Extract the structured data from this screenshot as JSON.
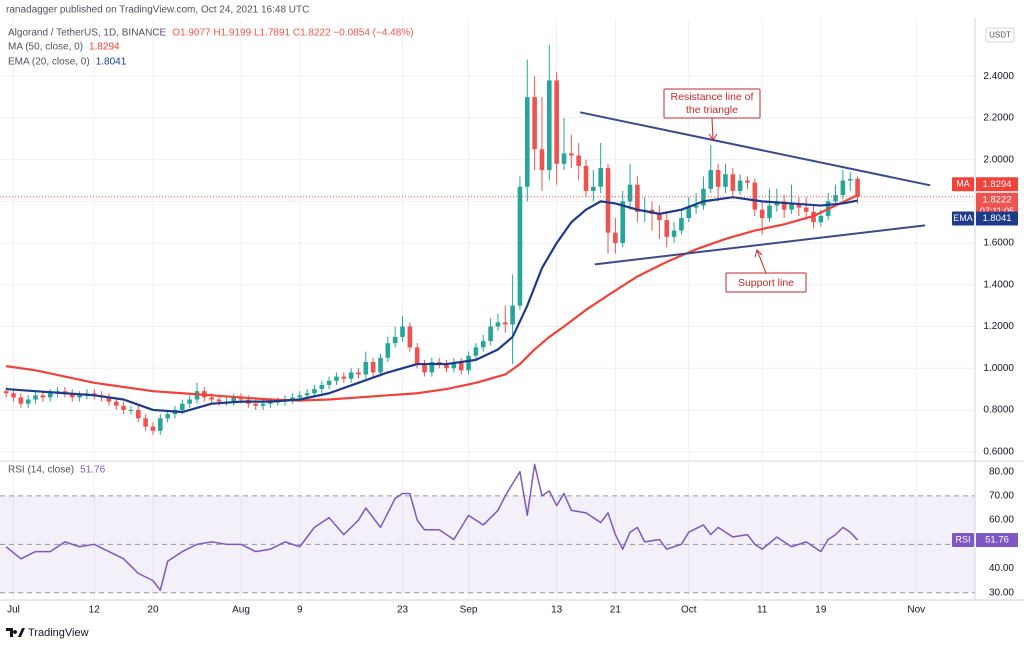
{
  "header": "ranadagger published on TradingView.com, Oct 24, 2021 16:48 UTC",
  "footer": "TradingView",
  "chart_data": [
    {
      "type": "candlestick",
      "title": "Algorand / TetherUS, 1D, BINANCE",
      "ohlc_label": "O1.9077 H1.9199 L1.7891 C1.8222 −0.0854 (−4.48%)",
      "currency": "USDT",
      "countdown": "07:11:05",
      "up_color": "#26a69a",
      "down_color": "#ef5350",
      "x": [
        -1,
        0,
        1,
        2,
        3,
        4,
        5,
        6,
        7,
        8,
        9,
        10,
        11,
        12,
        13,
        14,
        15,
        16,
        17,
        18,
        19,
        20,
        21,
        22,
        23,
        24,
        25,
        26,
        27,
        28,
        29,
        30,
        31,
        32,
        33,
        34,
        35,
        36,
        37,
        38,
        39,
        40,
        41,
        42,
        43,
        44,
        45,
        46,
        47,
        48,
        49,
        50,
        51,
        52,
        53,
        54,
        55,
        56,
        57,
        58,
        59,
        60,
        61,
        62,
        63,
        64,
        65,
        66,
        67,
        68,
        69,
        70,
        71,
        72,
        73,
        74,
        75,
        76,
        77,
        78,
        79,
        80,
        81,
        82,
        83,
        84,
        85,
        86,
        87,
        88,
        89,
        90,
        91,
        92,
        93,
        94,
        95,
        96,
        97,
        98,
        99,
        100,
        101,
        102,
        103,
        104,
        105,
        106,
        107,
        108,
        109,
        110,
        111,
        112,
        113,
        114,
        115
      ],
      "open": [
        0.89,
        0.88,
        0.86,
        0.83,
        0.85,
        0.87,
        0.86,
        0.88,
        0.89,
        0.88,
        0.86,
        0.87,
        0.88,
        0.87,
        0.86,
        0.84,
        0.82,
        0.8,
        0.8,
        0.76,
        0.72,
        0.7,
        0.76,
        0.78,
        0.8,
        0.83,
        0.85,
        0.89,
        0.86,
        0.85,
        0.84,
        0.84,
        0.86,
        0.85,
        0.83,
        0.82,
        0.83,
        0.84,
        0.84,
        0.85,
        0.86,
        0.87,
        0.88,
        0.9,
        0.92,
        0.94,
        0.96,
        0.95,
        0.98,
        0.97,
        1.03,
        0.98,
        1.05,
        1.12,
        1.15,
        1.2,
        1.1,
        1.02,
        0.98,
        1.03,
        1.02,
        1.0,
        1.03,
        0.99,
        1.06,
        1.1,
        1.13,
        1.2,
        1.22,
        1.21,
        1.3,
        1.87,
        2.3,
        2.05,
        1.95,
        2.38,
        1.98,
        2.03,
        2.02,
        1.97,
        1.85,
        1.87,
        1.96,
        1.65,
        1.6,
        1.8,
        1.88,
        1.75,
        1.76,
        1.74,
        1.71,
        1.63,
        1.66,
        1.72,
        1.77,
        1.78,
        1.86,
        1.95,
        1.87,
        1.93,
        1.85,
        1.9,
        1.89,
        1.76,
        1.72,
        1.78,
        1.8,
        1.76,
        1.79,
        1.77,
        1.75,
        1.7,
        1.73,
        1.8,
        1.83,
        1.9,
        1.9077
      ],
      "high": [
        0.91,
        0.9,
        0.88,
        0.87,
        0.89,
        0.89,
        0.9,
        0.91,
        0.91,
        0.9,
        0.89,
        0.9,
        0.9,
        0.89,
        0.88,
        0.86,
        0.84,
        0.82,
        0.82,
        0.78,
        0.74,
        0.78,
        0.8,
        0.82,
        0.85,
        0.87,
        0.93,
        0.91,
        0.88,
        0.87,
        0.86,
        0.88,
        0.88,
        0.87,
        0.85,
        0.85,
        0.86,
        0.86,
        0.87,
        0.88,
        0.89,
        0.9,
        0.92,
        0.94,
        0.96,
        0.98,
        0.98,
        1.0,
        1.0,
        1.08,
        1.05,
        1.07,
        1.15,
        1.2,
        1.25,
        1.22,
        1.12,
        1.04,
        1.05,
        1.05,
        1.04,
        1.05,
        1.05,
        1.08,
        1.12,
        1.16,
        1.24,
        1.26,
        1.3,
        1.45,
        1.92,
        2.48,
        2.4,
        2.3,
        2.55,
        2.42,
        2.2,
        2.12,
        2.08,
        2.0,
        1.95,
        2.08,
        1.98,
        1.72,
        1.85,
        1.98,
        1.92,
        1.82,
        1.8,
        1.78,
        1.75,
        1.7,
        1.76,
        1.82,
        1.84,
        1.92,
        2.07,
        1.98,
        1.98,
        1.96,
        1.93,
        1.92,
        1.91,
        1.8,
        1.86,
        1.86,
        1.83,
        1.88,
        1.82,
        1.82,
        1.78,
        1.76,
        1.84,
        1.88,
        1.95,
        1.94,
        1.9199
      ],
      "low": [
        0.86,
        0.84,
        0.81,
        0.81,
        0.83,
        0.84,
        0.84,
        0.86,
        0.86,
        0.84,
        0.84,
        0.85,
        0.85,
        0.84,
        0.82,
        0.8,
        0.78,
        0.78,
        0.74,
        0.7,
        0.68,
        0.68,
        0.74,
        0.76,
        0.78,
        0.81,
        0.83,
        0.84,
        0.83,
        0.82,
        0.82,
        0.82,
        0.83,
        0.81,
        0.8,
        0.8,
        0.81,
        0.82,
        0.82,
        0.83,
        0.84,
        0.85,
        0.86,
        0.88,
        0.9,
        0.92,
        0.93,
        0.93,
        0.95,
        0.95,
        0.96,
        0.96,
        1.03,
        1.1,
        1.13,
        1.08,
        1.0,
        0.96,
        0.96,
        1.0,
        0.98,
        0.98,
        0.97,
        0.97,
        1.04,
        1.08,
        1.11,
        1.18,
        1.17,
        1.02,
        1.28,
        1.8,
        1.95,
        1.85,
        1.9,
        1.88,
        1.95,
        1.96,
        1.9,
        1.82,
        1.8,
        1.84,
        1.55,
        1.55,
        1.58,
        1.76,
        1.7,
        1.7,
        1.66,
        1.62,
        1.58,
        1.6,
        1.64,
        1.7,
        1.74,
        1.76,
        1.84,
        1.8,
        1.84,
        1.82,
        1.83,
        1.86,
        1.73,
        1.64,
        1.7,
        1.75,
        1.72,
        1.74,
        1.73,
        1.71,
        1.67,
        1.68,
        1.71,
        1.78,
        1.81,
        1.85,
        1.7891
      ],
      "close": [
        0.88,
        0.86,
        0.83,
        0.85,
        0.87,
        0.86,
        0.88,
        0.89,
        0.88,
        0.86,
        0.87,
        0.88,
        0.87,
        0.86,
        0.84,
        0.82,
        0.8,
        0.8,
        0.76,
        0.72,
        0.7,
        0.76,
        0.78,
        0.8,
        0.83,
        0.85,
        0.89,
        0.86,
        0.85,
        0.84,
        0.84,
        0.86,
        0.85,
        0.83,
        0.82,
        0.83,
        0.84,
        0.84,
        0.85,
        0.86,
        0.87,
        0.88,
        0.9,
        0.92,
        0.94,
        0.96,
        0.95,
        0.98,
        0.97,
        1.03,
        0.98,
        1.05,
        1.12,
        1.15,
        1.2,
        1.1,
        1.02,
        0.98,
        1.03,
        1.02,
        1.0,
        1.03,
        0.99,
        1.06,
        1.1,
        1.13,
        1.2,
        1.22,
        1.21,
        1.3,
        1.87,
        2.3,
        2.05,
        1.95,
        2.38,
        1.98,
        2.03,
        2.02,
        1.97,
        1.85,
        1.87,
        1.96,
        1.65,
        1.6,
        1.8,
        1.88,
        1.75,
        1.76,
        1.74,
        1.71,
        1.63,
        1.66,
        1.72,
        1.77,
        1.78,
        1.86,
        1.95,
        1.87,
        1.93,
        1.85,
        1.9,
        1.89,
        1.76,
        1.72,
        1.78,
        1.8,
        1.76,
        1.79,
        1.77,
        1.75,
        1.7,
        1.73,
        1.8,
        1.83,
        1.9,
        1.9077,
        1.8222
      ],
      "series": [
        {
          "name": "MA (50, close, 0)",
          "badge": "MA",
          "color": "#f0413a",
          "x": [
            -1,
            3,
            7,
            11,
            15,
            19,
            23,
            27,
            31,
            35,
            39,
            43,
            47,
            51,
            55,
            59,
            63,
            67,
            69,
            71,
            73,
            75,
            78,
            81,
            85,
            89,
            93,
            97,
            101,
            105,
            109,
            112,
            115
          ],
          "values": [
            1.01,
            0.99,
            0.96,
            0.93,
            0.91,
            0.89,
            0.88,
            0.87,
            0.86,
            0.85,
            0.845,
            0.85,
            0.86,
            0.87,
            0.88,
            0.9,
            0.93,
            0.97,
            1.02,
            1.09,
            1.15,
            1.2,
            1.28,
            1.35,
            1.44,
            1.51,
            1.57,
            1.62,
            1.66,
            1.69,
            1.73,
            1.78,
            1.8294
          ]
        },
        {
          "name": "EMA (20, close, 0)",
          "badge": "EMA",
          "color": "#1e3a8a",
          "x": [
            -1,
            3,
            7,
            11,
            15,
            19,
            23,
            27,
            31,
            35,
            39,
            43,
            47,
            51,
            55,
            59,
            63,
            66,
            68,
            70,
            72,
            74,
            76,
            78,
            80,
            82,
            85,
            88,
            91,
            94,
            98,
            102,
            106,
            110,
            113,
            115
          ],
          "values": [
            0.9,
            0.89,
            0.88,
            0.87,
            0.85,
            0.8,
            0.79,
            0.83,
            0.84,
            0.84,
            0.85,
            0.88,
            0.93,
            0.98,
            1.02,
            1.02,
            1.04,
            1.09,
            1.15,
            1.3,
            1.48,
            1.6,
            1.7,
            1.76,
            1.8,
            1.79,
            1.76,
            1.74,
            1.76,
            1.8,
            1.82,
            1.8,
            1.79,
            1.78,
            1.79,
            1.8041
          ]
        }
      ],
      "trendlines": [
        {
          "color": "#3b4a8a",
          "x": [
            77.2,
            124.9
          ],
          "values": [
            2.227,
            1.877
          ]
        },
        {
          "color": "#3b4a8a",
          "x": [
            79.2,
            124.2
          ],
          "values": [
            1.498,
            1.685
          ]
        }
      ],
      "annotations": [
        {
          "lines": [
            "Resistance line of",
            "the triangle"
          ]
        },
        {
          "lines": [
            "Support line"
          ]
        }
      ],
      "xlim": [
        -1.84,
        131
      ],
      "xticks": [
        {
          "value": 0,
          "label": "Jul"
        },
        {
          "value": 11,
          "label": "12"
        },
        {
          "value": 19,
          "label": "20"
        },
        {
          "value": 31,
          "label": "Aug"
        },
        {
          "value": 39,
          "label": "9"
        },
        {
          "value": 53,
          "label": "23"
        },
        {
          "value": 62,
          "label": "Sep"
        },
        {
          "value": 74,
          "label": "13"
        },
        {
          "value": 82,
          "label": "21"
        },
        {
          "value": 92,
          "label": "Oct"
        },
        {
          "value": 102,
          "label": "11"
        },
        {
          "value": 110,
          "label": "19"
        },
        {
          "value": 123,
          "label": "Nov"
        }
      ],
      "ylim": [
        0.56,
        2.66
      ],
      "yticks": [
        {
          "value": 0.6,
          "label": "0.6000"
        },
        {
          "value": 0.8,
          "label": "0.8000"
        },
        {
          "value": 1.0,
          "label": "1.0000"
        },
        {
          "value": 1.2,
          "label": "1.2000"
        },
        {
          "value": 1.4,
          "label": "1.4000"
        },
        {
          "value": 1.6,
          "label": "1.6000"
        },
        {
          "value": 1.8,
          "label": "1.8000"
        },
        {
          "value": 2.0,
          "label": "2.0000"
        },
        {
          "value": 2.2,
          "label": "2.2000"
        },
        {
          "value": 2.4,
          "label": "2.4000"
        }
      ],
      "grid": true
    },
    {
      "type": "line",
      "name": "RSI (14, close)",
      "badge": "RSI",
      "color": "#7e57c2",
      "x": [
        -1,
        1,
        3,
        5,
        7,
        9,
        11,
        13,
        15,
        17,
        19,
        20,
        21,
        23,
        25,
        27,
        29,
        31,
        33,
        35,
        37,
        39,
        41,
        43,
        45,
        47,
        48,
        50,
        52,
        53,
        54,
        55,
        56,
        58,
        60,
        62,
        64,
        66,
        67,
        68,
        69,
        70,
        71,
        72,
        73,
        74,
        75,
        76,
        78,
        80,
        81,
        82,
        83,
        84,
        85,
        86,
        88,
        89,
        91,
        92,
        94,
        95,
        96,
        98,
        100,
        101,
        102,
        104,
        106,
        108,
        109,
        110,
        111,
        112,
        113,
        114,
        115
      ],
      "values": [
        49,
        44,
        47,
        47,
        51,
        49,
        50,
        47,
        44,
        38,
        35,
        31,
        43,
        47,
        50,
        51,
        50,
        50,
        47,
        48,
        51,
        49,
        57,
        61,
        54,
        60,
        65,
        57,
        69,
        71,
        71,
        60,
        56,
        56,
        52,
        62,
        58,
        64,
        70,
        75,
        80,
        62,
        83,
        70,
        72,
        66,
        71,
        64,
        63,
        59,
        63,
        54,
        48,
        55,
        57,
        51,
        52,
        48,
        50,
        55,
        58,
        54,
        57,
        53,
        54,
        50,
        48,
        53,
        49,
        51,
        49,
        47,
        52,
        54,
        57,
        55,
        51.76
      ],
      "bands": [
        70,
        50,
        30
      ],
      "ylim": [
        27,
        84
      ],
      "yticks": [
        {
          "value": 30,
          "label": "30.00"
        },
        {
          "value": 40,
          "label": "40.00"
        },
        {
          "value": 60,
          "label": "60.00"
        },
        {
          "value": 70,
          "label": "70.00"
        },
        {
          "value": 80,
          "label": "80.00"
        }
      ]
    }
  ]
}
